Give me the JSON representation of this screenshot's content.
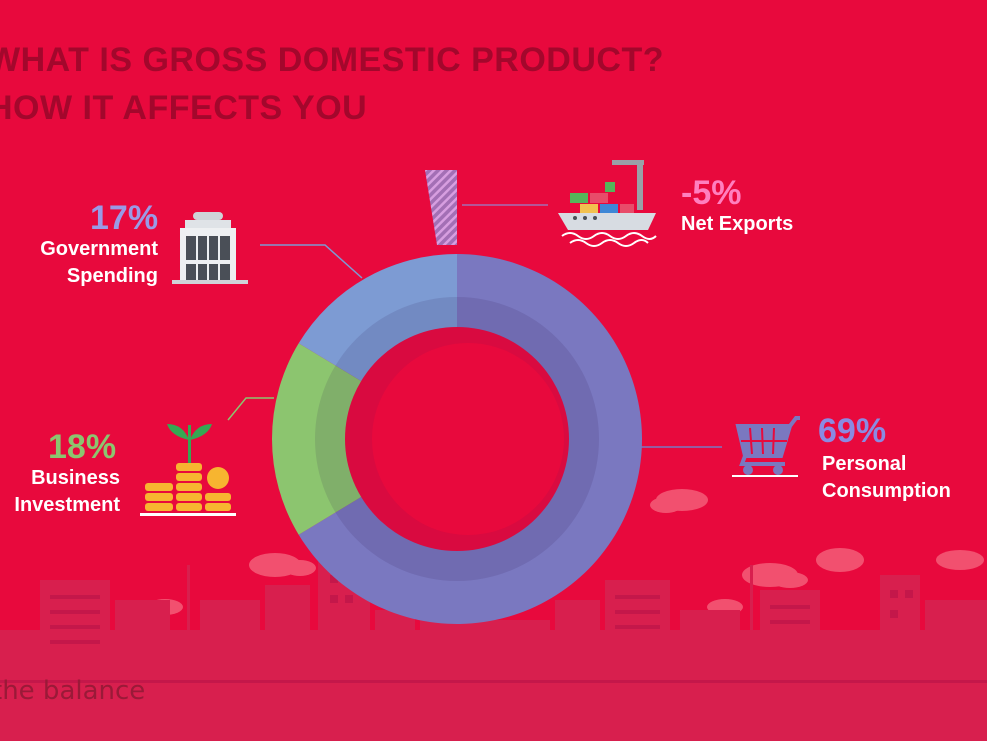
{
  "title": {
    "line1": "WHAT IS GROSS DOMESTIC PRODUCT?",
    "line2": "HOW IT AFFECTS YOU"
  },
  "brand": "the balance",
  "colors": {
    "background": "#e8093d",
    "personal_consumption": "#7a78c0",
    "business_investment": "#8cc56f",
    "government_spending": "#7d9bd3",
    "net_exports": "#a36fb5",
    "net_exports_text": "#ff7fbf"
  },
  "chart_data": {
    "type": "pie",
    "style": "donut",
    "slices": [
      {
        "label": "Personal Consumption",
        "value": 69,
        "value_label": "69%",
        "color": "#7a78c0",
        "icon": "shopping-cart-icon"
      },
      {
        "label": "Business Investment",
        "value": 18,
        "value_label": "18%",
        "color": "#8cc56f",
        "icon": "coin-stacks-plant-icon"
      },
      {
        "label": "Government Spending",
        "value": 17,
        "value_label": "17%",
        "color": "#7d9bd3",
        "icon": "government-building-icon"
      },
      {
        "label": "Net Exports",
        "value": -5,
        "value_label": "-5%",
        "color": "#a36fb5",
        "icon": "cargo-ship-icon"
      }
    ]
  }
}
